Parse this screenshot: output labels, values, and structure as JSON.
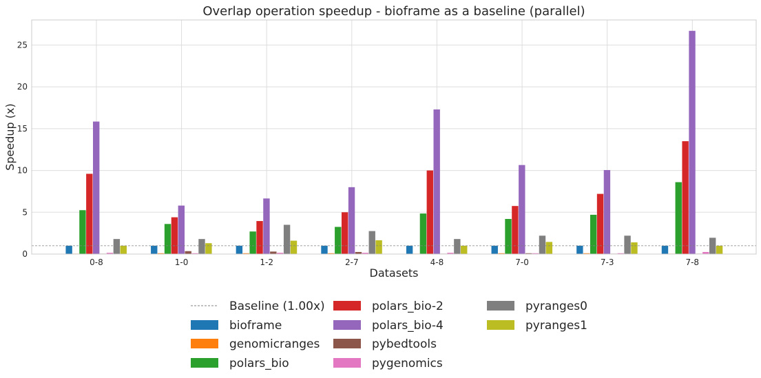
{
  "chart_data": {
    "type": "bar",
    "title": "Overlap operation speedup - bioframe as a baseline (parallel)",
    "xlabel": "Datasets",
    "ylabel": "Speedup (x)",
    "ylim": [
      0,
      28
    ],
    "yticks": [
      0,
      5,
      10,
      15,
      20,
      25
    ],
    "grid": true,
    "legend_placement": "bottom",
    "baseline": {
      "name": "Baseline (1.00x)",
      "value": 1.0,
      "color": "#808080"
    },
    "categories": [
      "0-8",
      "1-0",
      "1-2",
      "2-7",
      "4-8",
      "7-0",
      "7-3",
      "7-8"
    ],
    "series": [
      {
        "name": "bioframe",
        "color": "#1f77b4",
        "values": [
          1,
          1,
          1,
          1,
          1,
          1,
          1,
          1
        ]
      },
      {
        "name": "genomicranges",
        "color": "#ff7f0e",
        "values": [
          0.05,
          0.1,
          0.1,
          0.1,
          0.05,
          0.1,
          0.1,
          0.05
        ]
      },
      {
        "name": "polars_bio",
        "color": "#2ca02c",
        "values": [
          5.25,
          3.6,
          2.7,
          3.25,
          4.85,
          4.2,
          4.7,
          8.6
        ]
      },
      {
        "name": "polars_bio-2",
        "color": "#d62728",
        "values": [
          9.6,
          4.4,
          3.95,
          5.0,
          10.0,
          5.75,
          7.2,
          13.5
        ]
      },
      {
        "name": "polars_bio-4",
        "color": "#9467bd",
        "values": [
          15.85,
          5.8,
          6.65,
          8.0,
          17.3,
          10.65,
          10.05,
          26.7
        ]
      },
      {
        "name": "pybedtools",
        "color": "#8c564b",
        "values": [
          0.05,
          0.35,
          0.3,
          0.25,
          0.05,
          0.1,
          0.05,
          0.05
        ]
      },
      {
        "name": "pygenomics",
        "color": "#e377c2",
        "values": [
          0.15,
          0.1,
          0.15,
          0.15,
          0.15,
          0.1,
          0.1,
          0.25
        ]
      },
      {
        "name": "pyranges0",
        "color": "#7f7f7f",
        "values": [
          1.8,
          1.8,
          3.5,
          2.75,
          1.8,
          2.2,
          2.2,
          1.95
        ]
      },
      {
        "name": "pyranges1",
        "color": "#bcbd22",
        "values": [
          1.0,
          1.3,
          1.6,
          1.65,
          1.0,
          1.45,
          1.4,
          1.0
        ]
      }
    ]
  }
}
